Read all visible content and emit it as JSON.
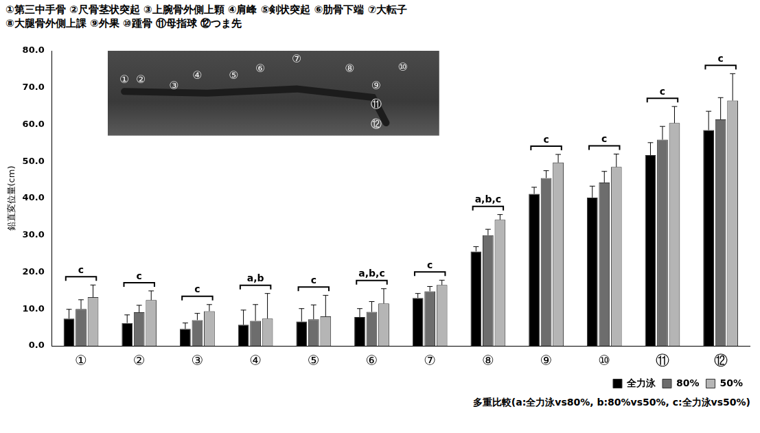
{
  "chart_data": {
    "type": "bar",
    "title": [
      "①第三中手骨 ②尺骨茎状突起 ③上腕骨外側上顆 ④肩峰 ⑤剣状突起 ⑥肋骨下端 ⑦大転子",
      "⑧大腿骨外側上課 ⑨外果 ⑩踵骨 ⑪母指球 ⑫つま先"
    ],
    "y_label": "鉛直変位量(cm)",
    "annotations": [
      "多重比較(a:全力泳vs80%, b:80%vs50%, c:全力泳vs50%)"
    ],
    "categories": [
      "①",
      "②",
      "③",
      "④",
      "⑤",
      "⑥",
      "⑦",
      "⑧",
      "⑨",
      "⑩",
      "⑪",
      "⑫"
    ],
    "series": [
      {
        "name": "全力泳",
        "color": "#000000",
        "values": [
          7.4,
          6.2,
          4.6,
          5.7,
          6.6,
          7.8,
          13.0,
          25.6,
          41.2,
          40.2,
          51.7,
          58.5
        ],
        "errors": [
          2.5,
          2.2,
          1.6,
          4.0,
          3.5,
          2.3,
          1.2,
          1.3,
          1.8,
          3.1,
          3.4,
          5.1
        ]
      },
      {
        "name": "80%",
        "color": "#6d6d6d",
        "values": [
          10.0,
          9.1,
          7.0,
          6.8,
          7.2,
          9.2,
          14.8,
          30.0,
          45.5,
          44.3,
          55.9,
          61.4
        ],
        "errors": [
          2.5,
          1.9,
          1.8,
          4.4,
          3.9,
          2.8,
          1.3,
          1.6,
          2.0,
          3.0,
          3.6,
          5.9
        ]
      },
      {
        "name": "50%",
        "color": "#b5b5b5",
        "values": [
          13.2,
          12.4,
          9.4,
          7.4,
          8.0,
          11.5,
          16.5,
          34.2,
          49.7,
          48.5,
          60.4,
          66.5
        ],
        "errors": [
          3.3,
          2.5,
          1.8,
          6.8,
          5.7,
          4.0,
          1.3,
          1.4,
          2.2,
          3.5,
          4.5,
          7.3
        ]
      }
    ],
    "significance": [
      "c",
      "c",
      "c",
      "a,b",
      "c",
      "a,b,c",
      "c",
      "a,b,c",
      "c",
      "c",
      "c",
      "c"
    ],
    "ylim": [
      0,
      80
    ],
    "yticks": [
      {
        "value": 0,
        "label": "0.0"
      },
      {
        "value": 10,
        "label": "10.0"
      },
      {
        "value": 20,
        "label": "20.0"
      },
      {
        "value": 30,
        "label": "30.0"
      },
      {
        "value": 40,
        "label": "40.0"
      },
      {
        "value": 50,
        "label": "50.0"
      },
      {
        "value": 60,
        "label": "60.0"
      },
      {
        "value": 70,
        "label": "70.0"
      },
      {
        "value": 80,
        "label": "80.0"
      }
    ],
    "grid": false,
    "legend": "bottom-right"
  }
}
